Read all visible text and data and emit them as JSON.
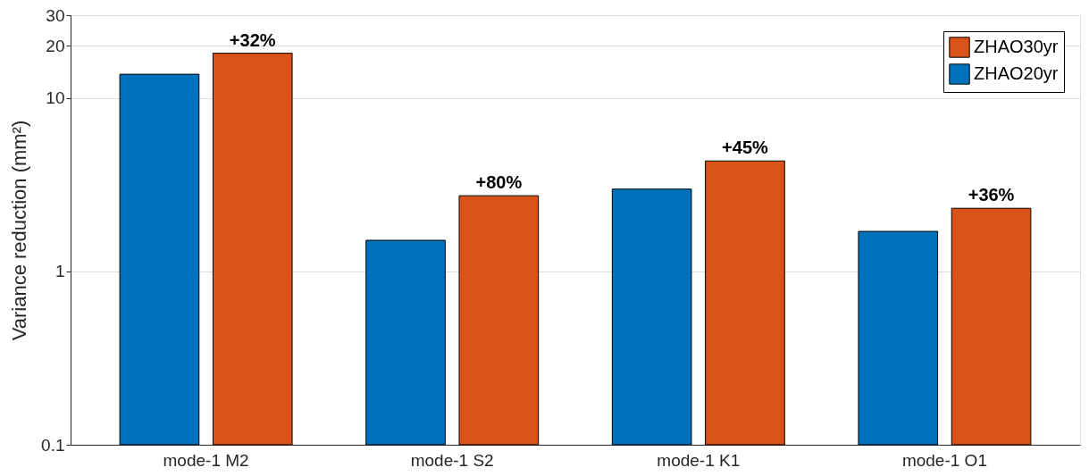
{
  "chart_data": {
    "type": "bar",
    "ylabel": "Variance reduction (mm²)",
    "categories": [
      "mode-1 M2",
      "mode-1 S2",
      "mode-1 K1",
      "mode-1 O1"
    ],
    "series": [
      {
        "name": "ZHAO20yr",
        "color": "#0072bd",
        "values": [
          13.7,
          1.51,
          2.98,
          1.7
        ]
      },
      {
        "name": "ZHAO30yr",
        "color": "#d95319",
        "values": [
          18.1,
          2.73,
          4.33,
          2.31
        ]
      }
    ],
    "log": "y",
    "ylim": [
      0.1,
      30
    ],
    "yticks": [
      {
        "value": 0.1,
        "label": "0.1"
      },
      1,
      10,
      20,
      30
    ],
    "grid": "y",
    "legend": "top right",
    "annotations": [
      "+32%",
      "+80%",
      "+45%",
      "+36%"
    ]
  }
}
